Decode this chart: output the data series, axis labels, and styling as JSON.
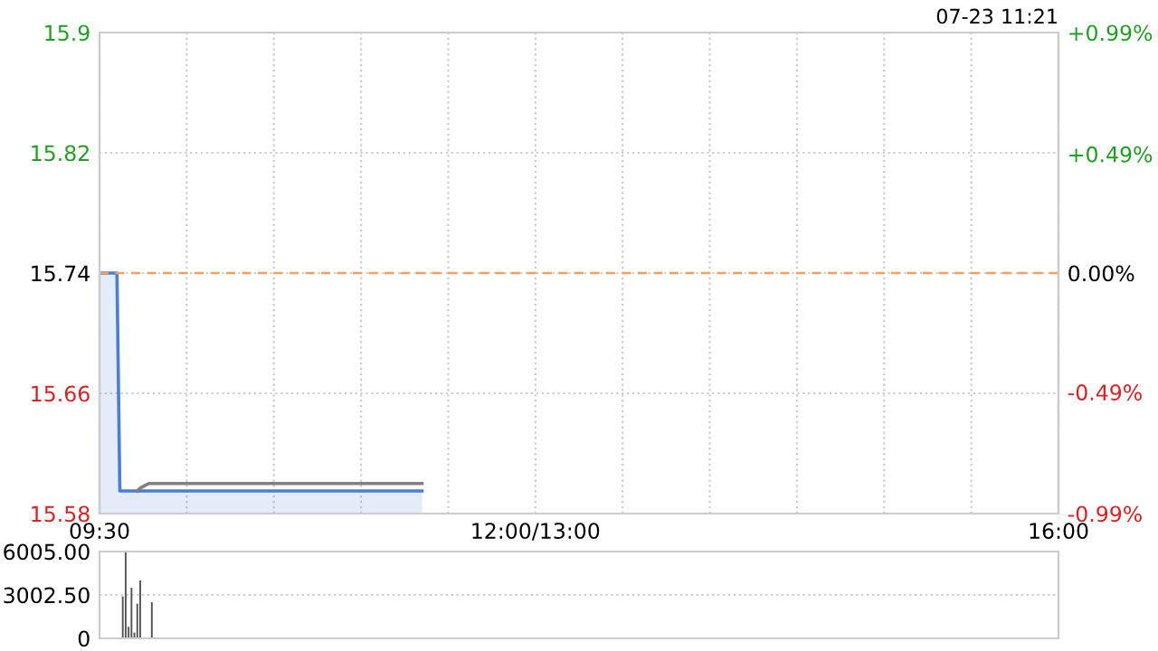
{
  "chart_data": [
    {
      "type": "area",
      "annotations": [
        "07-23 11:21"
      ],
      "categories": [
        "09:30",
        null,
        null,
        null,
        null,
        null,
        null,
        null,
        null,
        null,
        null,
        null,
        null,
        null,
        null,
        null,
        null,
        null,
        null,
        null,
        null,
        null,
        null,
        null,
        null,
        null,
        null,
        null,
        null,
        null,
        null,
        null,
        null,
        null,
        null,
        null,
        null,
        null,
        null,
        null,
        null,
        null,
        null,
        null,
        null,
        null,
        null,
        null,
        null,
        null,
        null,
        null,
        null,
        null,
        null,
        null,
        null,
        null,
        null,
        null,
        null,
        null,
        null,
        null,
        null,
        null,
        null,
        null,
        null,
        null,
        null,
        null,
        null,
        null,
        null,
        null,
        null,
        null,
        null,
        null,
        null,
        null,
        null,
        null,
        null,
        null,
        null,
        null,
        null,
        null,
        null,
        null,
        null,
        null,
        null,
        null,
        null,
        null,
        null,
        null,
        null,
        null,
        null,
        null,
        null,
        null,
        null,
        null,
        null,
        null,
        null,
        null,
        null,
        null,
        null,
        null,
        null,
        null,
        null,
        null,
        null,
        null,
        null,
        null,
        null,
        null,
        null,
        null,
        null,
        null,
        null,
        null,
        null,
        null,
        null,
        null,
        null,
        null,
        null,
        null,
        null,
        null,
        null,
        null,
        null,
        null,
        null,
        null,
        null,
        null,
        "12:00/13:00",
        null,
        null,
        null,
        null,
        null,
        null,
        null,
        null,
        null,
        null,
        null,
        null,
        null,
        null,
        null,
        null,
        null,
        null,
        null,
        null,
        null,
        null,
        null,
        null,
        null,
        null,
        null,
        null,
        null,
        null,
        null,
        null,
        null,
        null,
        null,
        null,
        null,
        null,
        null,
        null,
        null,
        null,
        null,
        null,
        null,
        null,
        null,
        null,
        null,
        null,
        null,
        null,
        null,
        null,
        null,
        null,
        null,
        null,
        null,
        null,
        null,
        null,
        null,
        null,
        null,
        null,
        null,
        null,
        null,
        null,
        null,
        null,
        null,
        null,
        null,
        null,
        null,
        null,
        null,
        null,
        null,
        null,
        null,
        null,
        null,
        null,
        null,
        null,
        null,
        null,
        null,
        null,
        null,
        null,
        null,
        null,
        null,
        null,
        null,
        null,
        null,
        null,
        null,
        null,
        null,
        null,
        null,
        null,
        null,
        null,
        null,
        null,
        null,
        null,
        null,
        null,
        null,
        null,
        null,
        null,
        null,
        null,
        null,
        null,
        null,
        null,
        null,
        null,
        null,
        null,
        null,
        null,
        null,
        null,
        null,
        null,
        null,
        null,
        null,
        null,
        null,
        null,
        null,
        null,
        null,
        null,
        null,
        null,
        null,
        null,
        null,
        null,
        null,
        null,
        null,
        null,
        null,
        null,
        null,
        null,
        null,
        null,
        null,
        null,
        null,
        null,
        null,
        null,
        null,
        null,
        null,
        null,
        null,
        null,
        null,
        null,
        null,
        null,
        null,
        "16:00"
      ],
      "series": [
        {
          "type": "area",
          "color": "#4a7fd4",
          "values": [
            15.74,
            15.74,
            15.74,
            15.74,
            15.74,
            15.74,
            15.74,
            15.595,
            15.595,
            15.595,
            15.595,
            15.595,
            15.595,
            15.595,
            15.595,
            15.595,
            15.595,
            15.595,
            15.595,
            15.595,
            15.595,
            15.595,
            15.595,
            15.595,
            15.595,
            15.595,
            15.595,
            15.595,
            15.595,
            15.595,
            15.595,
            15.595,
            15.595,
            15.595,
            15.595,
            15.595,
            15.595,
            15.595,
            15.595,
            15.595,
            15.595,
            15.595,
            15.595,
            15.595,
            15.595,
            15.595,
            15.595,
            15.595,
            15.595,
            15.595,
            15.595,
            15.595,
            15.595,
            15.595,
            15.595,
            15.595,
            15.595,
            15.595,
            15.595,
            15.595,
            15.595,
            15.595,
            15.595,
            15.595,
            15.595,
            15.595,
            15.595,
            15.595,
            15.595,
            15.595,
            15.595,
            15.595,
            15.595,
            15.595,
            15.595,
            15.595,
            15.595,
            15.595,
            15.595,
            15.595,
            15.595,
            15.595,
            15.595,
            15.595,
            15.595,
            15.595,
            15.595,
            15.595,
            15.595,
            15.595,
            15.595,
            15.595,
            15.595,
            15.595,
            15.595,
            15.595,
            15.595,
            15.595,
            15.595,
            15.595,
            15.595,
            15.595,
            15.595,
            15.595,
            15.595,
            15.595,
            15.595,
            15.595,
            15.595,
            15.595,
            15.595,
            15.595,
            null,
            null,
            null,
            null,
            null,
            null,
            null,
            null,
            null,
            null,
            null,
            null,
            null,
            null,
            null,
            null,
            null,
            null,
            null,
            null,
            null,
            null,
            null,
            null,
            null,
            null,
            null,
            null,
            null,
            null,
            null,
            null,
            null,
            null,
            null,
            null,
            null,
            null,
            null,
            null,
            null,
            null,
            null,
            null,
            null,
            null,
            null,
            null,
            null,
            null,
            null,
            null,
            null,
            null,
            null,
            null,
            null,
            null,
            null,
            null,
            null,
            null,
            null,
            null,
            null,
            null,
            null,
            null,
            null,
            null,
            null,
            null,
            null,
            null,
            null,
            null,
            null,
            null,
            null,
            null,
            null,
            null,
            null,
            null,
            null,
            null,
            null,
            null,
            null,
            null,
            null,
            null,
            null,
            null,
            null,
            null,
            null,
            null,
            null,
            null,
            null,
            null,
            null,
            null,
            null,
            null,
            null,
            null,
            null,
            null,
            null,
            null,
            null,
            null,
            null,
            null,
            null,
            null,
            null,
            null,
            null,
            null,
            null,
            null,
            null,
            null,
            null,
            null,
            null,
            null,
            null,
            null,
            null,
            null,
            null,
            null,
            null,
            null,
            null,
            null,
            null,
            null,
            null,
            null,
            null,
            null,
            null,
            null,
            null,
            null,
            null,
            null,
            null,
            null,
            null,
            null,
            null,
            null,
            null,
            null,
            null,
            null,
            null,
            null,
            null,
            null,
            null,
            null,
            null,
            null,
            null,
            null,
            null,
            null,
            null,
            null,
            null,
            null,
            null,
            null,
            null,
            null,
            null,
            null,
            null,
            null,
            null,
            null,
            null,
            null,
            null,
            null,
            null,
            null,
            null,
            null,
            null,
            null,
            null,
            null,
            null,
            null,
            null,
            null,
            null,
            null,
            null,
            null,
            null,
            null,
            null,
            null,
            null,
            null,
            null,
            null,
            null,
            null,
            null
          ]
        },
        {
          "type": "line",
          "color": "#808080",
          "values": [
            null,
            null,
            null,
            null,
            null,
            null,
            null,
            null,
            null,
            null,
            null,
            null,
            null,
            15.595,
            15.597,
            15.598,
            15.599,
            15.6,
            15.6,
            15.6,
            15.6,
            15.6,
            15.6,
            15.6,
            15.6,
            15.6,
            15.6,
            15.6,
            15.6,
            15.6,
            15.6,
            15.6,
            15.6,
            15.6,
            15.6,
            15.6,
            15.6,
            15.6,
            15.6,
            15.6,
            15.6,
            15.6,
            15.6,
            15.6,
            15.6,
            15.6,
            15.6,
            15.6,
            15.6,
            15.6,
            15.6,
            15.6,
            15.6,
            15.6,
            15.6,
            15.6,
            15.6,
            15.6,
            15.6,
            15.6,
            15.6,
            15.6,
            15.6,
            15.6,
            15.6,
            15.6,
            15.6,
            15.6,
            15.6,
            15.6,
            15.6,
            15.6,
            15.6,
            15.6,
            15.6,
            15.6,
            15.6,
            15.6,
            15.6,
            15.6,
            15.6,
            15.6,
            15.6,
            15.6,
            15.6,
            15.6,
            15.6,
            15.6,
            15.6,
            15.6,
            15.6,
            15.6,
            15.6,
            15.6,
            15.6,
            15.6,
            15.6,
            15.6,
            15.6,
            15.6,
            15.6,
            15.6,
            15.6,
            15.6,
            15.6,
            15.6,
            15.6,
            15.6,
            15.6,
            15.6,
            15.6,
            15.6,
            null,
            null,
            null,
            null,
            null,
            null,
            null,
            null,
            null,
            null,
            null,
            null,
            null,
            null,
            null,
            null,
            null,
            null,
            null,
            null,
            null,
            null,
            null,
            null,
            null,
            null,
            null,
            null,
            null,
            null,
            null,
            null,
            null,
            null,
            null,
            null,
            null,
            null,
            null,
            null,
            null,
            null,
            null,
            null,
            null,
            null,
            null,
            null,
            null,
            null,
            null,
            null,
            null,
            null,
            null,
            null,
            null,
            null,
            null,
            null,
            null,
            null,
            null,
            null,
            null,
            null,
            null,
            null,
            null,
            null,
            null,
            null,
            null,
            null,
            null,
            null,
            null,
            null,
            null,
            null,
            null,
            null,
            null,
            null,
            null,
            null,
            null,
            null,
            null,
            null,
            null,
            null,
            null,
            null,
            null,
            null,
            null,
            null,
            null,
            null,
            null,
            null,
            null,
            null,
            null,
            null,
            null,
            null,
            null,
            null,
            null,
            null,
            null,
            null,
            null,
            null,
            null,
            null,
            null,
            null,
            null,
            null,
            null,
            null,
            null,
            null,
            null,
            null,
            null,
            null,
            null,
            null,
            null,
            null,
            null,
            null,
            null,
            null,
            null,
            null,
            null,
            null,
            null,
            null,
            null,
            null,
            null,
            null,
            null,
            null,
            null,
            null,
            null,
            null,
            null,
            null,
            null,
            null,
            null,
            null,
            null,
            null,
            null,
            null,
            null,
            null,
            null,
            null,
            null,
            null,
            null,
            null,
            null,
            null,
            null,
            null,
            null,
            null,
            null,
            null,
            null,
            null,
            null,
            null,
            null,
            null,
            null,
            null,
            null,
            null,
            null,
            null,
            null,
            null,
            null,
            null,
            null,
            null,
            null,
            null,
            null,
            null,
            null,
            null,
            null,
            null,
            null,
            null,
            null,
            null,
            null,
            null,
            null,
            null,
            null,
            null,
            null,
            null,
            null
          ]
        }
      ],
      "ylim": [
        15.58,
        15.9
      ],
      "yticks": [
        15.58,
        15.66,
        15.74,
        15.82,
        15.9
      ],
      "y2lim": [
        -0.99,
        0.99
      ],
      "y2ticks": [
        {
          "value": -0.99,
          "label": "-0.99%"
        },
        {
          "value": -0.49,
          "label": "-0.49%"
        },
        {
          "value": 0,
          "label": "0.00%"
        },
        {
          "value": 0.49,
          "label": "+0.49%"
        },
        {
          "value": 0.99,
          "label": "+0.99%"
        }
      ],
      "ref_lines": [
        {
          "axis": "y",
          "value": 15.74,
          "color": "#f0a060",
          "line_style": "dashed"
        }
      ],
      "grid": true
    },
    {
      "type": "bar",
      "color": "#555555",
      "tick_labels": "y",
      "grid": "y",
      "ylim": [
        0,
        6005
      ],
      "yticks": [
        0,
        {
          "value": 3002.5,
          "label": "3002.50"
        },
        {
          "value": 6005,
          "label": "6005.00"
        }
      ],
      "categories": [
        null,
        null,
        null,
        null,
        null,
        null,
        null,
        null,
        null,
        null,
        null,
        null,
        null,
        null,
        null,
        null,
        null,
        null,
        null,
        null,
        null,
        null,
        null,
        null,
        null,
        null,
        null,
        null,
        null,
        null,
        null,
        null,
        null,
        null,
        null,
        null,
        null,
        null,
        null,
        null,
        null,
        null,
        null,
        null,
        null,
        null,
        null,
        null,
        null,
        null,
        null,
        null,
        null,
        null,
        null,
        null,
        null,
        null,
        null,
        null,
        null,
        null,
        null,
        null,
        null,
        null,
        null,
        null,
        null,
        null,
        null,
        null,
        null,
        null,
        null,
        null,
        null,
        null,
        null,
        null,
        null,
        null,
        null,
        null,
        null,
        null,
        null,
        null,
        null,
        null,
        null,
        null,
        null,
        null,
        null,
        null,
        null,
        null,
        null,
        null,
        null,
        null,
        null,
        null,
        null,
        null,
        null,
        null,
        null,
        null,
        null,
        null,
        null,
        null,
        null,
        null,
        null,
        null,
        null,
        null,
        null,
        null,
        null,
        null,
        null,
        null,
        null,
        null,
        null,
        null,
        null,
        null,
        null,
        null,
        null,
        null,
        null,
        null,
        null,
        null,
        null,
        null,
        null,
        null,
        null,
        null,
        null,
        null,
        null,
        null,
        null,
        null,
        null,
        null,
        null,
        null,
        null,
        null,
        null,
        null,
        null,
        null,
        null,
        null,
        null,
        null,
        null,
        null,
        null,
        null,
        null,
        null,
        null,
        null,
        null,
        null,
        null,
        null,
        null,
        null,
        null,
        null,
        null,
        null,
        null,
        null,
        null,
        null,
        null,
        null,
        null,
        null,
        null,
        null,
        null,
        null,
        null,
        null,
        null,
        null,
        null,
        null,
        null,
        null,
        null,
        null,
        null,
        null,
        null,
        null,
        null,
        null,
        null,
        null,
        null,
        null,
        null,
        null,
        null,
        null,
        null,
        null,
        null,
        null,
        null,
        null,
        null,
        null,
        null,
        null,
        null,
        null,
        null,
        null,
        null,
        null,
        null,
        null,
        null,
        null,
        null,
        null,
        null,
        null,
        null,
        null,
        null,
        null,
        null,
        null,
        null,
        null,
        null,
        null,
        null,
        null,
        null,
        null,
        null,
        null,
        null,
        null,
        null,
        null,
        null,
        null,
        null,
        null,
        null,
        null,
        null,
        null,
        null,
        null,
        null,
        null,
        null,
        null,
        null,
        null,
        null,
        null,
        null,
        null,
        null,
        null,
        null,
        null,
        null,
        null,
        null,
        null,
        null,
        null,
        null,
        null,
        null,
        null,
        null,
        null,
        null,
        null,
        null,
        null,
        null,
        null,
        null,
        null,
        null,
        null,
        null,
        null,
        null,
        null,
        null,
        null,
        null,
        null,
        null,
        null,
        null,
        null,
        null,
        null,
        null,
        null,
        null,
        null,
        null,
        null,
        null
      ],
      "values": [
        null,
        null,
        null,
        null,
        null,
        null,
        null,
        null,
        2900,
        6005,
        800,
        3500,
        400,
        2400,
        4000,
        null,
        null,
        null,
        2500,
        null,
        null,
        null,
        null,
        null,
        null,
        null,
        null,
        null,
        null,
        null,
        null,
        null,
        null,
        null,
        null,
        null,
        null,
        null,
        null,
        null,
        null,
        null,
        null,
        null,
        null,
        null,
        null,
        null,
        null,
        null,
        null,
        null,
        null,
        null,
        null,
        null,
        null,
        null,
        null,
        null,
        null,
        null,
        null,
        null,
        null,
        null,
        null,
        null,
        null,
        null,
        null,
        null,
        null,
        null,
        null,
        null,
        null,
        null,
        null,
        null,
        null,
        null,
        null,
        null,
        null,
        null,
        null,
        null,
        null,
        null,
        null,
        null,
        null,
        null,
        null,
        null,
        null,
        null,
        null,
        null,
        null,
        null,
        null,
        null,
        null,
        null,
        null,
        null,
        null,
        null,
        null,
        null,
        null,
        null,
        null,
        null,
        null,
        null,
        null,
        null,
        null,
        null,
        null,
        null,
        null,
        null,
        null,
        null,
        null,
        null,
        null,
        null,
        null,
        null,
        null,
        null,
        null,
        null,
        null,
        null,
        null,
        null,
        null,
        null,
        null,
        null,
        null,
        null,
        null,
        null,
        null,
        null,
        null,
        null,
        null,
        null,
        null,
        null,
        null,
        null,
        null,
        null,
        null,
        null,
        null,
        null,
        null,
        null,
        null,
        null,
        null,
        null,
        null,
        null,
        null,
        null,
        null,
        null,
        null,
        null,
        null,
        null,
        null,
        null,
        null,
        null,
        null,
        null,
        null,
        null,
        null,
        null,
        null,
        null,
        null,
        null,
        null,
        null,
        null,
        null,
        null,
        null,
        null,
        null,
        null,
        null,
        null,
        null,
        null,
        null,
        null,
        null,
        null,
        null,
        null,
        null,
        null,
        null,
        null,
        null,
        null,
        null,
        null,
        null,
        null,
        null,
        null,
        null,
        null,
        null,
        null,
        null,
        null,
        null,
        null,
        null,
        null,
        null,
        null,
        null,
        null,
        null,
        null,
        null,
        null,
        null,
        null,
        null,
        null,
        null,
        null,
        null,
        null,
        null,
        null,
        null,
        null,
        null,
        null,
        null,
        null,
        null,
        null,
        null,
        null,
        null,
        null,
        null,
        null,
        null,
        null,
        null,
        null,
        null,
        null,
        null,
        null,
        null,
        null,
        null,
        null,
        null,
        null,
        null,
        null,
        null,
        null,
        null,
        null,
        null,
        null,
        null,
        null,
        null,
        null,
        null,
        null,
        null,
        null,
        null,
        null,
        null,
        null,
        null,
        null,
        null,
        null,
        null,
        null,
        null,
        null,
        null,
        null,
        null,
        null,
        null,
        null,
        null,
        null,
        null,
        null,
        null,
        null,
        null,
        null,
        null,
        null,
        null,
        null,
        null,
        null
      ]
    }
  ]
}
